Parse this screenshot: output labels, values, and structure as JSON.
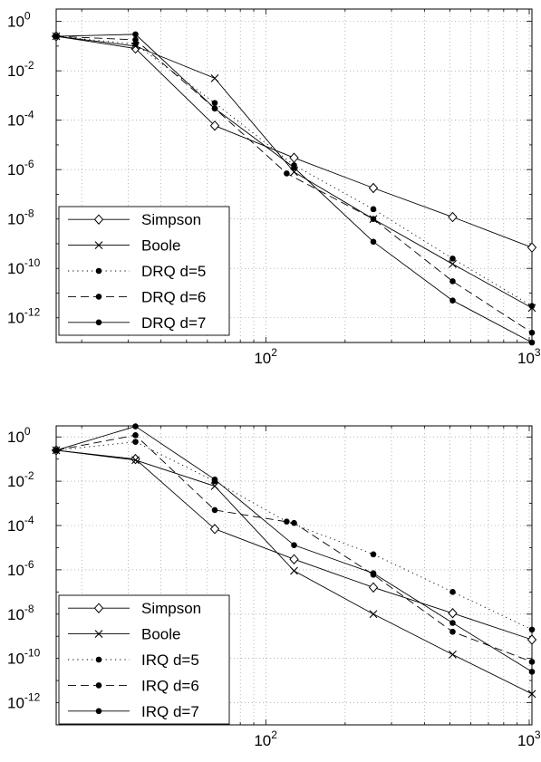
{
  "chart_data": [
    {
      "type": "line",
      "x_scale": "log",
      "y_scale": "log",
      "grid": true,
      "legend_position": "bottom-left",
      "xlim": [
        16,
        1024
      ],
      "ylim_exp": [
        -13,
        0.5
      ],
      "x_ticks": [
        {
          "base": "10",
          "exp": "2",
          "value": 100
        },
        {
          "base": "10",
          "exp": "3",
          "value": 1000
        }
      ],
      "y_ticks": [
        {
          "base": "10",
          "exp": "0",
          "value": 0
        },
        {
          "base": "10",
          "exp": "-2",
          "value": -2
        },
        {
          "base": "10",
          "exp": "-4",
          "value": -4
        },
        {
          "base": "10",
          "exp": "-6",
          "value": -6
        },
        {
          "base": "10",
          "exp": "-8",
          "value": -8
        },
        {
          "base": "10",
          "exp": "-10",
          "value": -10
        },
        {
          "base": "10",
          "exp": "-12",
          "value": -12
        }
      ],
      "series": [
        {
          "name": "Simpson",
          "style": "solid",
          "marker": "diamond",
          "x": [
            16,
            32,
            64,
            128,
            256,
            512,
            1024
          ],
          "y": [
            0.25,
            0.08,
            6e-05,
            3e-06,
            1.8e-07,
            1.2e-08,
            7e-10
          ]
        },
        {
          "name": "Boole",
          "style": "solid",
          "marker": "x",
          "x": [
            16,
            32,
            64,
            128,
            256,
            512,
            1024
          ],
          "y": [
            0.25,
            0.1,
            0.005,
            8e-07,
            1e-08,
            1.5e-10,
            2.5e-12
          ]
        },
        {
          "name": "DRQ d=5",
          "style": "dotted",
          "marker": "dot",
          "x": [
            16,
            32,
            64,
            128,
            256,
            512,
            1024
          ],
          "y": [
            0.25,
            0.12,
            0.0005,
            1.5e-06,
            2.5e-08,
            2.5e-10,
            3e-12
          ]
        },
        {
          "name": "DRQ d=6",
          "style": "dashed",
          "marker": "dot",
          "x": [
            16,
            32,
            64,
            120,
            256,
            512,
            1024
          ],
          "y": [
            0.25,
            0.18,
            0.0003,
            7e-07,
            1e-08,
            3e-11,
            2.5e-13
          ]
        },
        {
          "name": "DRQ d=7",
          "style": "solid",
          "marker": "dot",
          "x": [
            16,
            32,
            64,
            128,
            256,
            512,
            1024
          ],
          "y": [
            0.25,
            0.3,
            0.0003,
            1.2e-06,
            1.2e-09,
            5e-12,
            1e-13
          ]
        }
      ]
    },
    {
      "type": "line",
      "x_scale": "log",
      "y_scale": "log",
      "grid": true,
      "legend_position": "bottom-left",
      "xlim": [
        16,
        1024
      ],
      "ylim_exp": [
        -13,
        0.5
      ],
      "x_ticks": [
        {
          "base": "10",
          "exp": "2",
          "value": 100
        },
        {
          "base": "10",
          "exp": "3",
          "value": 1000
        }
      ],
      "y_ticks": [
        {
          "base": "10",
          "exp": "0",
          "value": 0
        },
        {
          "base": "10",
          "exp": "-2",
          "value": -2
        },
        {
          "base": "10",
          "exp": "-4",
          "value": -4
        },
        {
          "base": "10",
          "exp": "-6",
          "value": -6
        },
        {
          "base": "10",
          "exp": "-8",
          "value": -8
        },
        {
          "base": "10",
          "exp": "-10",
          "value": -10
        },
        {
          "base": "10",
          "exp": "-12",
          "value": -12
        }
      ],
      "series": [
        {
          "name": "Simpson",
          "style": "solid",
          "marker": "diamond",
          "x": [
            16,
            32,
            64,
            128,
            256,
            512,
            1024
          ],
          "y": [
            0.25,
            0.1,
            7e-05,
            3e-06,
            1.6e-07,
            1.1e-08,
            7e-10
          ]
        },
        {
          "name": "Boole",
          "style": "solid",
          "marker": "x",
          "x": [
            16,
            32,
            64,
            128,
            256,
            512,
            1024
          ],
          "y": [
            0.25,
            0.09,
            0.006,
            9e-07,
            1e-08,
            1.5e-10,
            2.5e-12
          ]
        },
        {
          "name": "IRQ d=5",
          "style": "dotted",
          "marker": "dot",
          "x": [
            16,
            32,
            64,
            120,
            256,
            512,
            1024
          ],
          "y": [
            0.25,
            0.6,
            0.01,
            0.00015,
            5e-06,
            1e-07,
            2e-09
          ]
        },
        {
          "name": "IRQ d=6",
          "style": "dashed",
          "marker": "dot",
          "x": [
            16,
            32,
            64,
            128,
            256,
            512,
            1024
          ],
          "y": [
            0.25,
            1.2,
            0.0005,
            0.00013,
            6e-07,
            1.6e-09,
            7e-11
          ]
        },
        {
          "name": "IRQ d=7",
          "style": "solid",
          "marker": "dot",
          "x": [
            16,
            32,
            64,
            128,
            256,
            512,
            1024
          ],
          "y": [
            0.25,
            3,
            0.012,
            1.3e-05,
            7e-07,
            4e-09,
            2.5e-11
          ]
        }
      ]
    }
  ]
}
